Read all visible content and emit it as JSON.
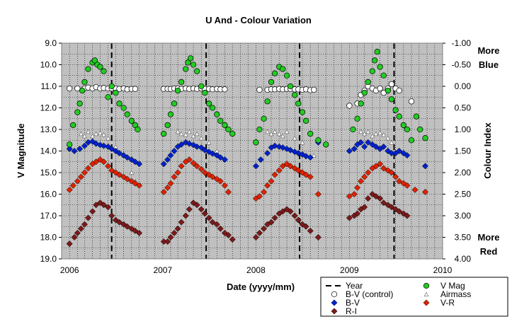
{
  "chart_data": {
    "type": "scatter",
    "title": "U And - Colour Variation",
    "xlabel": "Date (yyyy/mm)",
    "ylabel_left": "V Magnitude",
    "ylabel_right": "Colour Index",
    "annotation_top": [
      "More",
      "Blue"
    ],
    "annotation_bottom": [
      "More",
      "Red"
    ],
    "x_range": [
      "2005-12-01",
      "2010-01-01"
    ],
    "x_tick_labels": [
      "2006",
      "2007",
      "2008",
      "2009",
      "2010"
    ],
    "x_tick_dates": [
      "2006-01-01",
      "2007-01-01",
      "2008-01-01",
      "2009-01-01",
      "2010-01-01"
    ],
    "left_axis": {
      "range": [
        9.0,
        19.0
      ],
      "inverted": true,
      "tick_labels": [
        "9.0",
        "10.0",
        "11.0",
        "12.0",
        "13.0",
        "14.0",
        "15.0",
        "16.0",
        "17.0",
        "18.0",
        "19.0"
      ]
    },
    "right_axis": {
      "range": [
        -1.0,
        4.0
      ],
      "inverted": true,
      "tick_labels": [
        "-1.00",
        "-0.50",
        "0.00",
        "0.50",
        "1.00",
        "1.50",
        "2.00",
        "2.50",
        "3.00",
        "3.50",
        "4.00"
      ]
    },
    "grid": true,
    "legend_position": "bottom-right",
    "year_lines": [
      "2006-06-15",
      "2007-06-20",
      "2008-06-20",
      "2009-06-25"
    ],
    "legend": [
      {
        "name": "Year",
        "marker": "dash"
      },
      {
        "name": "V Mag",
        "marker": "circle",
        "color": "#22cc22"
      },
      {
        "name": "B-V (control)",
        "marker": "circle",
        "color": "#ffffff"
      },
      {
        "name": "Airmass",
        "marker": "triangle",
        "color": "#ffffff"
      },
      {
        "name": "B-V",
        "marker": "diamond",
        "color": "#0022cc"
      },
      {
        "name": "V-R",
        "marker": "diamond",
        "color": "#dd2200"
      },
      {
        "name": "R-I",
        "marker": "diamond",
        "color": "#7a1a1a"
      }
    ],
    "series": [
      {
        "name": "V Mag",
        "axis": "left",
        "x": [
          "2006-01-01",
          "2006-01-15",
          "2006-02-01",
          "2006-02-10",
          "2006-02-20",
          "2006-03-01",
          "2006-03-15",
          "2006-04-01",
          "2006-04-10",
          "2006-04-20",
          "2006-05-01",
          "2006-05-15",
          "2006-06-01",
          "2006-06-15",
          "2006-07-01",
          "2006-07-15",
          "2006-08-01",
          "2006-08-15",
          "2006-09-01",
          "2006-09-15",
          "2006-09-25",
          "2007-01-05",
          "2007-01-20",
          "2007-02-01",
          "2007-02-15",
          "2007-03-01",
          "2007-03-15",
          "2007-04-01",
          "2007-04-10",
          "2007-04-20",
          "2007-05-01",
          "2007-05-15",
          "2007-06-01",
          "2007-06-15",
          "2007-07-01",
          "2007-07-15",
          "2007-08-01",
          "2007-08-15",
          "2007-09-01",
          "2007-09-15",
          "2007-10-01",
          "2008-01-01",
          "2008-01-15",
          "2008-02-01",
          "2008-02-15",
          "2008-03-01",
          "2008-03-15",
          "2008-04-01",
          "2008-04-15",
          "2008-05-01",
          "2008-05-15",
          "2008-06-01",
          "2008-06-15",
          "2008-07-01",
          "2008-07-15",
          "2008-08-01",
          "2008-09-01",
          "2008-10-01",
          "2009-01-15",
          "2009-02-01",
          "2009-02-15",
          "2009-03-01",
          "2009-03-15",
          "2009-04-01",
          "2009-04-10",
          "2009-04-20",
          "2009-05-01",
          "2009-05-15",
          "2009-06-01",
          "2009-06-15",
          "2009-07-01",
          "2009-07-15",
          "2009-08-01",
          "2009-08-15",
          "2009-09-01",
          "2009-09-20",
          "2009-10-05",
          "2009-10-25"
        ],
        "y": [
          13.7,
          12.8,
          12.2,
          11.8,
          11.2,
          10.8,
          10.2,
          9.9,
          9.8,
          10.0,
          10.1,
          10.3,
          11.5,
          11.0,
          11.3,
          11.8,
          12.0,
          12.3,
          12.6,
          12.8,
          13.0,
          13.2,
          12.8,
          12.3,
          11.8,
          11.2,
          10.8,
          10.2,
          9.9,
          9.7,
          10.0,
          10.3,
          11.0,
          11.3,
          11.8,
          12.0,
          12.3,
          12.6,
          12.8,
          13.0,
          13.2,
          13.6,
          13.0,
          12.5,
          11.7,
          10.8,
          10.4,
          10.1,
          10.2,
          10.5,
          11.0,
          11.4,
          11.8,
          12.2,
          12.6,
          13.2,
          13.5,
          13.7,
          13.0,
          12.5,
          11.8,
          11.3,
          10.8,
          10.3,
          9.8,
          9.4,
          10.1,
          10.5,
          11.2,
          11.6,
          12.1,
          12.4,
          12.8,
          13.0,
          13.5,
          12.4,
          13.0,
          13.4
        ],
        "color": "#22cc22"
      },
      {
        "name": "B-V (control)",
        "axis": "right",
        "x": [
          "2006-01-01",
          "2006-02-01",
          "2006-03-01",
          "2006-03-15",
          "2006-04-01",
          "2006-04-15",
          "2006-05-01",
          "2006-05-15",
          "2006-06-01",
          "2006-06-15",
          "2006-07-01",
          "2006-07-15",
          "2006-08-01",
          "2006-08-15",
          "2006-09-01",
          "2006-09-15",
          "2007-01-05",
          "2007-01-20",
          "2007-02-01",
          "2007-02-15",
          "2007-03-01",
          "2007-03-15",
          "2007-04-01",
          "2007-04-15",
          "2007-05-01",
          "2007-05-15",
          "2007-06-01",
          "2007-06-15",
          "2007-07-01",
          "2007-07-15",
          "2007-08-01",
          "2007-08-15",
          "2007-09-01",
          "2008-01-15",
          "2008-02-15",
          "2008-03-01",
          "2008-03-15",
          "2008-04-01",
          "2008-04-15",
          "2008-05-01",
          "2008-05-15",
          "2008-06-01",
          "2008-06-15",
          "2008-07-01",
          "2008-07-15",
          "2008-08-01",
          "2008-08-15",
          "2009-01-01",
          "2009-02-01",
          "2009-02-15",
          "2009-03-01",
          "2009-03-15",
          "2009-04-01",
          "2009-04-15",
          "2009-05-01",
          "2009-05-15",
          "2009-06-01",
          "2009-06-15",
          "2009-07-01",
          "2009-07-15",
          "2009-09-01"
        ],
        "y": [
          0.05,
          0.05,
          0.05,
          0.03,
          0.05,
          0.02,
          0.05,
          0.04,
          0.05,
          0.05,
          0.05,
          0.06,
          0.05,
          0.07,
          0.06,
          0.06,
          0.06,
          0.06,
          0.06,
          0.05,
          0.05,
          0.06,
          0.05,
          0.06,
          0.05,
          0.06,
          0.05,
          0.06,
          0.06,
          0.07,
          0.06,
          0.07,
          0.07,
          0.08,
          0.08,
          0.07,
          0.07,
          0.06,
          0.07,
          0.06,
          0.06,
          0.07,
          0.07,
          0.08,
          0.07,
          0.09,
          0.08,
          0.45,
          0.4,
          0.2,
          0.1,
          0.0,
          0.05,
          0.1,
          0.05,
          0.15,
          0.05,
          -0.05,
          0.05,
          0.1,
          0.35
        ],
        "color": "#ffffff"
      },
      {
        "name": "Airmass",
        "axis": "right",
        "x": [
          "2006-02-15",
          "2006-03-01",
          "2006-03-15",
          "2006-04-01",
          "2006-04-15",
          "2006-05-01",
          "2006-05-15",
          "2006-06-01",
          "2006-07-01",
          "2006-08-01",
          "2006-09-01",
          "2006-09-15",
          "2007-03-01",
          "2007-03-15",
          "2007-04-01",
          "2007-04-15",
          "2007-05-01",
          "2007-05-15",
          "2007-06-01",
          "2007-07-01",
          "2007-08-01",
          "2008-02-15",
          "2008-03-01",
          "2008-03-15",
          "2008-04-01",
          "2008-04-15",
          "2008-05-01",
          "2008-06-01",
          "2008-07-01",
          "2008-08-15",
          "2009-02-15",
          "2009-03-01",
          "2009-03-15",
          "2009-04-01",
          "2009-04-15",
          "2009-05-01",
          "2009-05-15",
          "2009-06-01",
          "2009-06-15"
        ],
        "y": [
          1.1,
          1.15,
          1.05,
          1.15,
          1.1,
          1.08,
          1.12,
          1.2,
          1.4,
          1.6,
          2.0,
          2.2,
          1.05,
          1.1,
          1.12,
          1.05,
          1.15,
          1.1,
          1.2,
          1.3,
          1.5,
          1.05,
          1.1,
          1.05,
          1.1,
          1.15,
          1.05,
          1.2,
          1.3,
          1.6,
          1.05,
          1.1,
          1.05,
          1.15,
          1.1,
          1.08,
          1.12,
          1.2,
          1.3
        ],
        "color": "#ffffff"
      },
      {
        "name": "B-V",
        "axis": "right",
        "x": [
          "2006-01-01",
          "2006-01-20",
          "2006-02-10",
          "2006-03-01",
          "2006-03-15",
          "2006-04-01",
          "2006-04-15",
          "2006-05-01",
          "2006-05-15",
          "2006-06-01",
          "2006-06-15",
          "2006-07-01",
          "2006-07-15",
          "2006-08-01",
          "2006-08-15",
          "2006-09-01",
          "2006-09-15",
          "2006-10-01",
          "2007-01-05",
          "2007-01-20",
          "2007-02-01",
          "2007-02-15",
          "2007-03-01",
          "2007-03-15",
          "2007-04-01",
          "2007-04-15",
          "2007-05-01",
          "2007-05-15",
          "2007-06-01",
          "2007-06-15",
          "2007-07-01",
          "2007-07-15",
          "2007-08-01",
          "2007-08-15",
          "2007-09-01",
          "2008-01-01",
          "2008-01-20",
          "2008-02-15",
          "2008-03-01",
          "2008-03-15",
          "2008-04-01",
          "2008-04-15",
          "2008-05-01",
          "2008-05-15",
          "2008-06-01",
          "2008-06-15",
          "2008-07-01",
          "2008-07-15",
          "2008-08-01",
          "2008-09-01",
          "2009-01-01",
          "2009-01-20",
          "2009-02-01",
          "2009-02-15",
          "2009-03-01",
          "2009-03-15",
          "2009-04-01",
          "2009-04-15",
          "2009-05-01",
          "2009-05-15",
          "2009-06-01",
          "2009-06-15",
          "2009-07-01",
          "2009-07-15",
          "2009-08-01",
          "2009-08-15",
          "2009-10-25"
        ],
        "y": [
          1.45,
          1.5,
          1.45,
          1.38,
          1.3,
          1.28,
          1.33,
          1.36,
          1.38,
          1.4,
          1.45,
          1.5,
          1.55,
          1.6,
          1.65,
          1.7,
          1.75,
          1.8,
          1.8,
          1.7,
          1.6,
          1.5,
          1.4,
          1.35,
          1.3,
          1.33,
          1.36,
          1.4,
          1.42,
          1.48,
          1.52,
          1.56,
          1.6,
          1.65,
          1.7,
          1.85,
          1.7,
          1.55,
          1.42,
          1.38,
          1.4,
          1.42,
          1.45,
          1.48,
          1.52,
          1.55,
          1.58,
          1.62,
          1.65,
          1.3,
          1.5,
          1.45,
          1.35,
          1.3,
          1.4,
          1.3,
          1.35,
          1.4,
          1.45,
          1.4,
          1.5,
          1.55,
          1.55,
          1.5,
          1.55,
          1.6,
          1.85
        ],
        "color": "#0022cc"
      },
      {
        "name": "V-R",
        "axis": "right",
        "x": [
          "2006-01-01",
          "2006-01-15",
          "2006-02-01",
          "2006-02-15",
          "2006-03-01",
          "2006-03-15",
          "2006-04-01",
          "2006-04-15",
          "2006-05-01",
          "2006-05-15",
          "2006-06-01",
          "2006-06-15",
          "2006-07-01",
          "2006-07-15",
          "2006-08-01",
          "2006-08-15",
          "2006-09-01",
          "2006-09-15",
          "2006-10-01",
          "2007-01-05",
          "2007-01-20",
          "2007-02-01",
          "2007-02-15",
          "2007-03-01",
          "2007-03-15",
          "2007-04-01",
          "2007-04-15",
          "2007-05-01",
          "2007-05-15",
          "2007-06-01",
          "2007-06-15",
          "2007-07-01",
          "2007-07-15",
          "2007-08-01",
          "2007-08-15",
          "2007-09-01",
          "2007-09-15",
          "2008-01-01",
          "2008-01-15",
          "2008-02-01",
          "2008-02-15",
          "2008-03-01",
          "2008-03-15",
          "2008-04-01",
          "2008-04-15",
          "2008-05-01",
          "2008-05-15",
          "2008-06-01",
          "2008-06-15",
          "2008-07-01",
          "2008-07-15",
          "2008-08-01",
          "2008-09-01",
          "2009-01-01",
          "2009-01-20",
          "2009-02-01",
          "2009-02-15",
          "2009-03-01",
          "2009-03-15",
          "2009-04-01",
          "2009-04-15",
          "2009-05-01",
          "2009-05-15",
          "2009-06-01",
          "2009-06-15",
          "2009-07-01",
          "2009-07-15",
          "2009-08-01",
          "2009-08-15",
          "2009-09-15",
          "2009-10-25"
        ],
        "y": [
          2.4,
          2.3,
          2.2,
          2.1,
          2.0,
          1.9,
          1.8,
          1.75,
          1.7,
          1.75,
          1.85,
          1.95,
          2.0,
          2.05,
          2.1,
          2.15,
          2.2,
          2.25,
          2.3,
          2.45,
          2.35,
          2.25,
          2.1,
          2.0,
          1.85,
          1.75,
          1.7,
          1.78,
          1.85,
          1.92,
          2.0,
          2.05,
          2.1,
          2.15,
          2.2,
          2.3,
          2.45,
          2.6,
          2.55,
          2.45,
          2.3,
          2.2,
          2.05,
          1.95,
          1.85,
          1.8,
          1.85,
          1.9,
          1.95,
          2.0,
          2.05,
          2.1,
          2.5,
          2.55,
          2.5,
          2.35,
          2.2,
          2.1,
          2.0,
          1.9,
          1.85,
          1.8,
          1.9,
          1.95,
          2.0,
          2.1,
          2.2,
          2.25,
          2.3,
          2.4,
          2.45
        ],
        "color": "#dd2200"
      },
      {
        "name": "R-I",
        "axis": "right",
        "x": [
          "2006-01-01",
          "2006-01-20",
          "2006-02-01",
          "2006-02-15",
          "2006-03-01",
          "2006-03-15",
          "2006-04-01",
          "2006-04-15",
          "2006-05-01",
          "2006-05-15",
          "2006-06-01",
          "2006-06-15",
          "2006-07-01",
          "2006-07-15",
          "2006-08-01",
          "2006-08-15",
          "2006-09-01",
          "2006-09-15",
          "2006-10-01",
          "2007-01-05",
          "2007-01-20",
          "2007-02-01",
          "2007-02-15",
          "2007-03-01",
          "2007-03-15",
          "2007-04-01",
          "2007-04-15",
          "2007-05-01",
          "2007-05-15",
          "2007-06-01",
          "2007-06-15",
          "2007-07-01",
          "2007-07-15",
          "2007-08-01",
          "2007-08-15",
          "2007-09-01",
          "2007-09-15",
          "2007-10-01",
          "2008-01-01",
          "2008-01-15",
          "2008-02-01",
          "2008-02-15",
          "2008-03-01",
          "2008-03-15",
          "2008-04-01",
          "2008-04-15",
          "2008-05-01",
          "2008-05-15",
          "2008-06-01",
          "2008-06-15",
          "2008-07-01",
          "2008-07-15",
          "2008-08-01",
          "2008-09-01",
          "2009-01-01",
          "2009-01-20",
          "2009-02-01",
          "2009-02-15",
          "2009-03-01",
          "2009-03-15",
          "2009-04-01",
          "2009-04-15",
          "2009-05-01",
          "2009-05-15",
          "2009-06-01",
          "2009-06-15",
          "2009-07-01",
          "2009-07-15",
          "2009-08-01",
          "2009-08-15"
        ],
        "y": [
          3.65,
          3.5,
          3.4,
          3.3,
          3.2,
          3.05,
          2.9,
          2.75,
          2.7,
          2.75,
          2.8,
          3.0,
          3.1,
          3.15,
          3.2,
          3.25,
          3.3,
          3.35,
          3.4,
          3.6,
          3.6,
          3.5,
          3.4,
          3.3,
          3.15,
          3.0,
          2.85,
          2.7,
          2.75,
          2.85,
          2.95,
          3.05,
          3.15,
          3.2,
          3.3,
          3.4,
          3.45,
          3.55,
          3.5,
          3.4,
          3.3,
          3.2,
          3.15,
          3.05,
          2.95,
          2.9,
          2.85,
          2.9,
          3.0,
          3.1,
          3.2,
          3.25,
          3.35,
          3.5,
          3.05,
          3.0,
          2.95,
          2.85,
          2.8,
          2.6,
          2.5,
          2.55,
          2.6,
          2.7,
          2.75,
          2.8,
          2.85,
          2.9,
          2.95,
          3.0
        ],
        "color": "#7a1a1a"
      }
    ]
  }
}
